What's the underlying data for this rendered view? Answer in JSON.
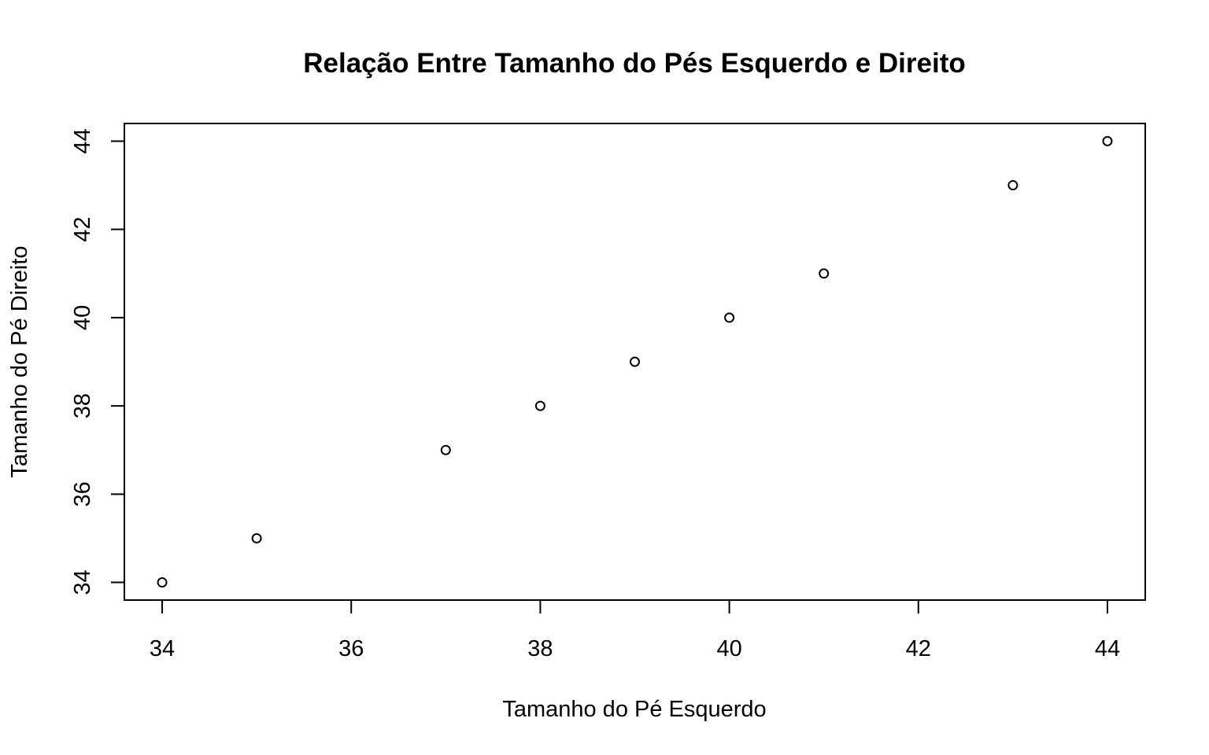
{
  "chart_data": {
    "type": "scatter",
    "title": "Relação Entre Tamanho do Pés Esquerdo e Direito",
    "xlabel": "Tamanho do Pé Esquerdo",
    "ylabel": "Tamanho do Pé Direito",
    "xlim": [
      33.6,
      44.4
    ],
    "ylim": [
      33.6,
      44.4
    ],
    "x_ticks": [
      34,
      36,
      38,
      40,
      42,
      44
    ],
    "y_ticks": [
      34,
      36,
      38,
      40,
      42,
      44
    ],
    "grid": false,
    "points": [
      {
        "x": 34,
        "y": 34
      },
      {
        "x": 35,
        "y": 35
      },
      {
        "x": 37,
        "y": 37
      },
      {
        "x": 38,
        "y": 38
      },
      {
        "x": 39,
        "y": 39
      },
      {
        "x": 40,
        "y": 40
      },
      {
        "x": 41,
        "y": 41
      },
      {
        "x": 43,
        "y": 43
      },
      {
        "x": 44,
        "y": 44
      }
    ],
    "marker": "open-circle",
    "colors": {
      "marker": "#000000",
      "axes": "#000000",
      "background": "#ffffff"
    }
  }
}
